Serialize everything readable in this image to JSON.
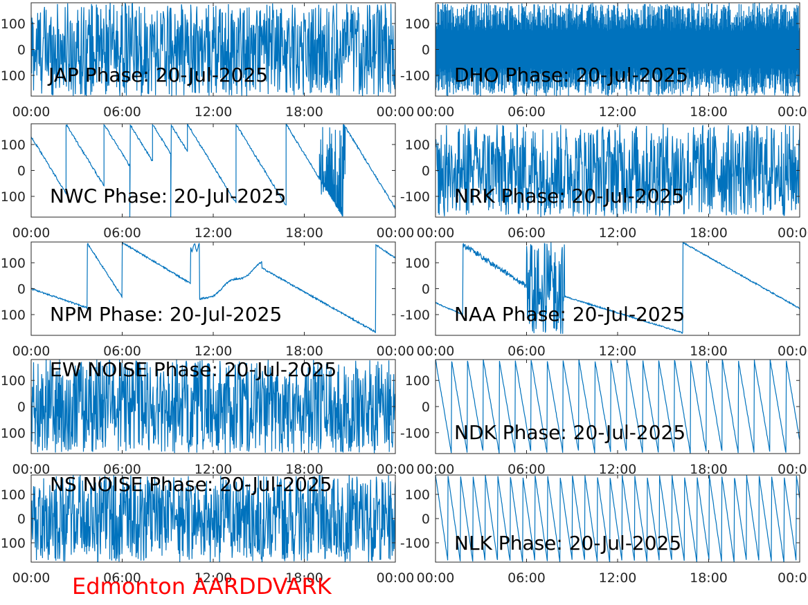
{
  "colors": {
    "line": "#0072BD",
    "axis": "#262626",
    "footer": "#ff0000"
  },
  "footer": "Edmonton AARDDVARK",
  "chart_data": [
    {
      "type": "line",
      "title": "JAP Phase: 20-Jul-2025",
      "xticks": [
        "00:00",
        "06:00",
        "12:00",
        "18:00",
        "00:00"
      ],
      "yticks": [
        "100",
        "0",
        "-100"
      ],
      "ylim": [
        -180,
        180
      ],
      "xlim_hours": [
        0,
        24
      ],
      "pattern": "noise",
      "wraps": []
    },
    {
      "type": "line",
      "title": "DHO Phase: 20-Jul-2025",
      "xticks": [
        "00:00",
        "06:00",
        "12:00",
        "18:00",
        "00:00"
      ],
      "yticks": [
        "100",
        "0",
        "-100"
      ],
      "ylim": [
        -180,
        180
      ],
      "xlim_hours": [
        0,
        24
      ],
      "pattern": "fastwrap",
      "wraps": []
    },
    {
      "type": "line",
      "title": "NWC Phase: 20-Jul-2025",
      "xticks": [
        "00:00",
        "06:00",
        "12:00",
        "18:00",
        "00:00"
      ],
      "yticks": [
        "100",
        "0",
        "-100"
      ],
      "ylim": [
        -180,
        180
      ],
      "xlim_hours": [
        0,
        24
      ],
      "pattern": "wraps",
      "wraps": [
        2.3,
        4.8,
        6.5,
        8.0,
        9.2,
        10.3,
        13.5,
        16.8
      ]
    },
    {
      "type": "line",
      "title": "NRK Phase: 20-Jul-2025",
      "xticks": [
        "00:00",
        "06:00",
        "12:00",
        "18:00",
        "00:00"
      ],
      "yticks": [
        "100",
        "0",
        "-100"
      ],
      "ylim": [
        -180,
        180
      ],
      "xlim_hours": [
        0,
        24
      ],
      "pattern": "noise",
      "wraps": []
    },
    {
      "type": "line",
      "title": "NPM Phase: 20-Jul-2025",
      "xticks": [
        "00:00",
        "06:00",
        "12:00",
        "18:00",
        "00:00"
      ],
      "yticks": [
        "100",
        "0",
        "-100"
      ],
      "ylim": [
        -180,
        180
      ],
      "xlim_hours": [
        0,
        24
      ],
      "pattern": "npm",
      "wraps": [
        3.7,
        6.0,
        10.5,
        11.1,
        22.7
      ]
    },
    {
      "type": "line",
      "title": "NAA Phase: 20-Jul-2025",
      "xticks": [
        "00:00",
        "06:00",
        "12:00",
        "18:00",
        "00:00"
      ],
      "yticks": [
        "100",
        "0",
        "-100"
      ],
      "ylim": [
        -180,
        180
      ],
      "xlim_hours": [
        0,
        24
      ],
      "pattern": "naa",
      "wraps": [
        1.8,
        16.3
      ]
    },
    {
      "type": "line",
      "title": "EW NOISE Phase: 20-Jul-2025",
      "xticks": [
        "00:00",
        "06:00",
        "12:00",
        "18:00",
        "00:00"
      ],
      "yticks": [
        "100",
        "0",
        "-100"
      ],
      "ylim": [
        -180,
        180
      ],
      "xlim_hours": [
        0,
        24
      ],
      "pattern": "noise",
      "wraps": []
    },
    {
      "type": "line",
      "title": "NDK Phase: 20-Jul-2025",
      "xticks": [
        "00:00",
        "06:00",
        "12:00",
        "18:00",
        "00:00"
      ],
      "yticks": [
        "100",
        "0",
        "-100"
      ],
      "ylim": [
        -180,
        180
      ],
      "xlim_hours": [
        0,
        24
      ],
      "pattern": "periodic",
      "wraps": []
    },
    {
      "type": "line",
      "title": "NS NOISE Phase: 20-Jul-2025",
      "xticks": [
        "00:00",
        "06:00",
        "12:00",
        "18:00",
        "00:00"
      ],
      "yticks": [
        "100",
        "0",
        "-100"
      ],
      "ylim": [
        -180,
        180
      ],
      "xlim_hours": [
        0,
        24
      ],
      "pattern": "noise",
      "wraps": []
    },
    {
      "type": "line",
      "title": "NLK Phase: 20-Jul-2025",
      "xticks": [
        "00:00",
        "06:00",
        "12:00",
        "18:00",
        "00:00"
      ],
      "yticks": [
        "100",
        "0",
        "-100"
      ],
      "ylim": [
        -180,
        180
      ],
      "xlim_hours": [
        0,
        24
      ],
      "pattern": "periodic",
      "wraps": []
    }
  ]
}
